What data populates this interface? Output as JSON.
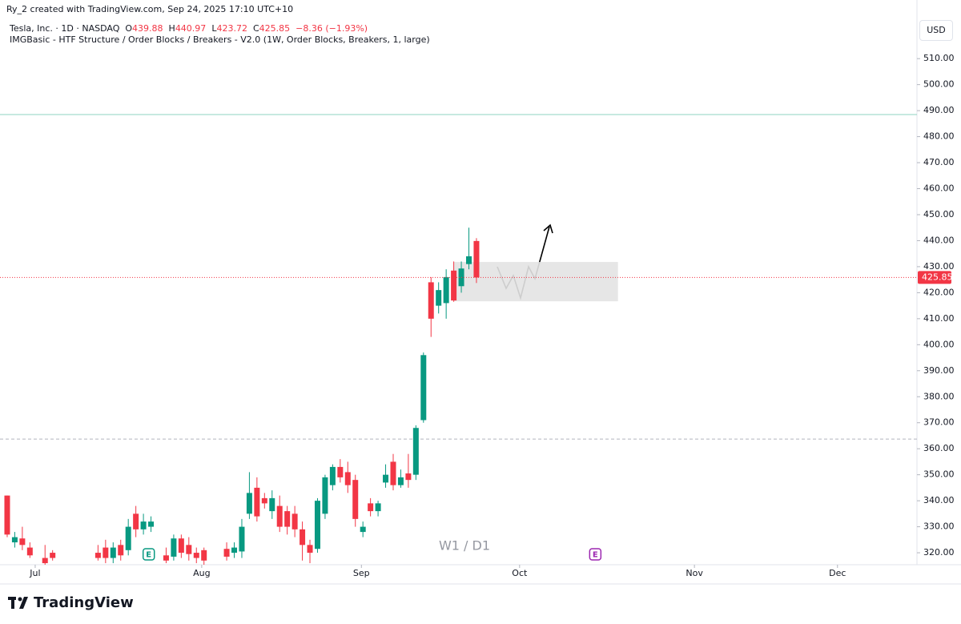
{
  "header": {
    "creator": "Ry_2 created with TradingView.com, Sep 24, 2025 17:10 UTC+10"
  },
  "chart_data": {
    "type": "candlestick",
    "title": "Tesla, Inc. · 1D · NASDAQ",
    "quote_labels": [
      "O",
      "H",
      "L",
      "C"
    ],
    "change": "−8.36 (−1.93%)",
    "indicator": "IMGBasic - HTF Structure / Order Blocks / Breakers - V2.0 (1W, Order Blocks, Breakers, 1, large)",
    "currency": "USD",
    "watermark": "W1 / D1",
    "x": [
      0,
      1,
      2,
      3,
      5,
      6,
      12,
      13,
      14,
      15,
      16,
      17,
      18,
      19,
      21,
      22,
      23,
      24,
      25,
      26,
      29,
      30,
      31,
      32,
      33,
      34,
      35,
      36,
      37,
      38,
      39,
      40,
      41,
      42,
      43,
      44,
      45,
      46,
      47,
      48,
      49,
      50,
      51,
      52,
      53,
      54,
      55,
      56,
      57,
      58,
      59,
      60,
      61,
      62
    ],
    "open": [
      342,
      324,
      325.5,
      322,
      318,
      320,
      320,
      322,
      318,
      323,
      321,
      335,
      329,
      330,
      319,
      318.5,
      325.5,
      323,
      320,
      321,
      321.5,
      320,
      320.5,
      335,
      345,
      341,
      336,
      338,
      336,
      335,
      329,
      323,
      321.5,
      335,
      346,
      353,
      351,
      348,
      328,
      339,
      336,
      347,
      355,
      346,
      350.5,
      350,
      371,
      424,
      415,
      416,
      428.5,
      422.5,
      431,
      439.88
    ],
    "high": [
      342,
      328,
      330,
      324,
      323,
      321,
      323,
      325,
      324,
      325,
      333,
      338,
      335,
      334,
      322,
      327,
      327,
      326,
      322,
      322,
      324,
      324,
      333,
      351,
      349,
      343,
      344,
      342,
      338,
      338,
      332,
      325,
      341,
      350,
      354,
      356,
      355,
      350,
      332,
      341,
      340,
      354,
      358,
      352,
      358,
      369,
      397,
      426,
      424,
      429,
      432,
      432,
      445,
      440.97
    ],
    "low": [
      326,
      322,
      321,
      318,
      315,
      317,
      317,
      316,
      316,
      317,
      319,
      326,
      327,
      328,
      316,
      317,
      318,
      317,
      316,
      315,
      317,
      318,
      318,
      333,
      332,
      337,
      333,
      328,
      327,
      326,
      317,
      316,
      320,
      333,
      344,
      347,
      343,
      330,
      326,
      334,
      334,
      345,
      344,
      345,
      345,
      348,
      370,
      403,
      412,
      410,
      416.5,
      420,
      429,
      423.72
    ],
    "close": [
      327,
      326,
      323,
      319,
      316,
      318,
      318,
      318,
      322,
      319,
      330,
      329,
      332,
      332,
      317,
      325.5,
      320,
      319.5,
      318,
      317,
      318.5,
      322,
      330,
      343,
      334,
      339,
      341,
      330,
      330,
      329,
      323,
      320,
      340,
      349,
      353,
      349,
      346,
      333,
      330,
      336,
      339,
      350,
      346,
      349,
      348,
      368,
      396,
      410,
      421,
      426,
      417,
      429.3,
      434,
      425.85
    ],
    "up_color": "#089981",
    "down_color": "#f23645",
    "xlim": [
      -0.95,
      120.2
    ],
    "xticks": [
      {
        "value": 3.7,
        "label": "Jul"
      },
      {
        "value": 25.7,
        "label": "Aug"
      },
      {
        "value": 46.8,
        "label": "Sep"
      },
      {
        "value": 67.7,
        "label": "Oct"
      },
      {
        "value": 90.8,
        "label": "Nov"
      },
      {
        "value": 109.7,
        "label": "Dec"
      }
    ],
    "ylim": [
      315.4,
      523.3
    ],
    "yticks": [
      {
        "value": 320,
        "label": "320.00"
      },
      {
        "value": 330,
        "label": "330.00"
      },
      {
        "value": 340,
        "label": "340.00"
      },
      {
        "value": 350,
        "label": "350.00"
      },
      {
        "value": 360,
        "label": "360.00"
      },
      {
        "value": 370,
        "label": "370.00"
      },
      {
        "value": 380,
        "label": "380.00"
      },
      {
        "value": 390,
        "label": "390.00"
      },
      {
        "value": 400,
        "label": "400.00"
      },
      {
        "value": 410,
        "label": "410.00"
      },
      {
        "value": 420,
        "label": "420.00"
      },
      {
        "value": 430,
        "label": "430.00"
      },
      {
        "value": 440,
        "label": "440.00"
      },
      {
        "value": 450,
        "label": "450.00"
      },
      {
        "value": 460,
        "label": "460.00"
      },
      {
        "value": 470,
        "label": "470.00"
      },
      {
        "value": 480,
        "label": "480.00"
      },
      {
        "value": 490,
        "label": "490.00"
      },
      {
        "value": 500,
        "label": "500.00"
      },
      {
        "value": 510,
        "label": "510.00"
      }
    ],
    "levels": [
      {
        "value": 488.5,
        "color": "#8fd3c0",
        "style": "solid"
      },
      {
        "value": 363.7,
        "color": "#b2b5be",
        "style": "dashed"
      }
    ],
    "zone": {
      "x": [
        59.0,
        80.7
      ],
      "y": [
        416.7,
        431.8
      ],
      "color": "#e3e3e3"
    },
    "events": [
      {
        "x": 18.7,
        "label": "E",
        "color": "#089981"
      },
      {
        "x": 77.7,
        "label": "E",
        "color": "#9c27b0"
      }
    ]
  },
  "footer": {
    "brand": "TradingView"
  }
}
